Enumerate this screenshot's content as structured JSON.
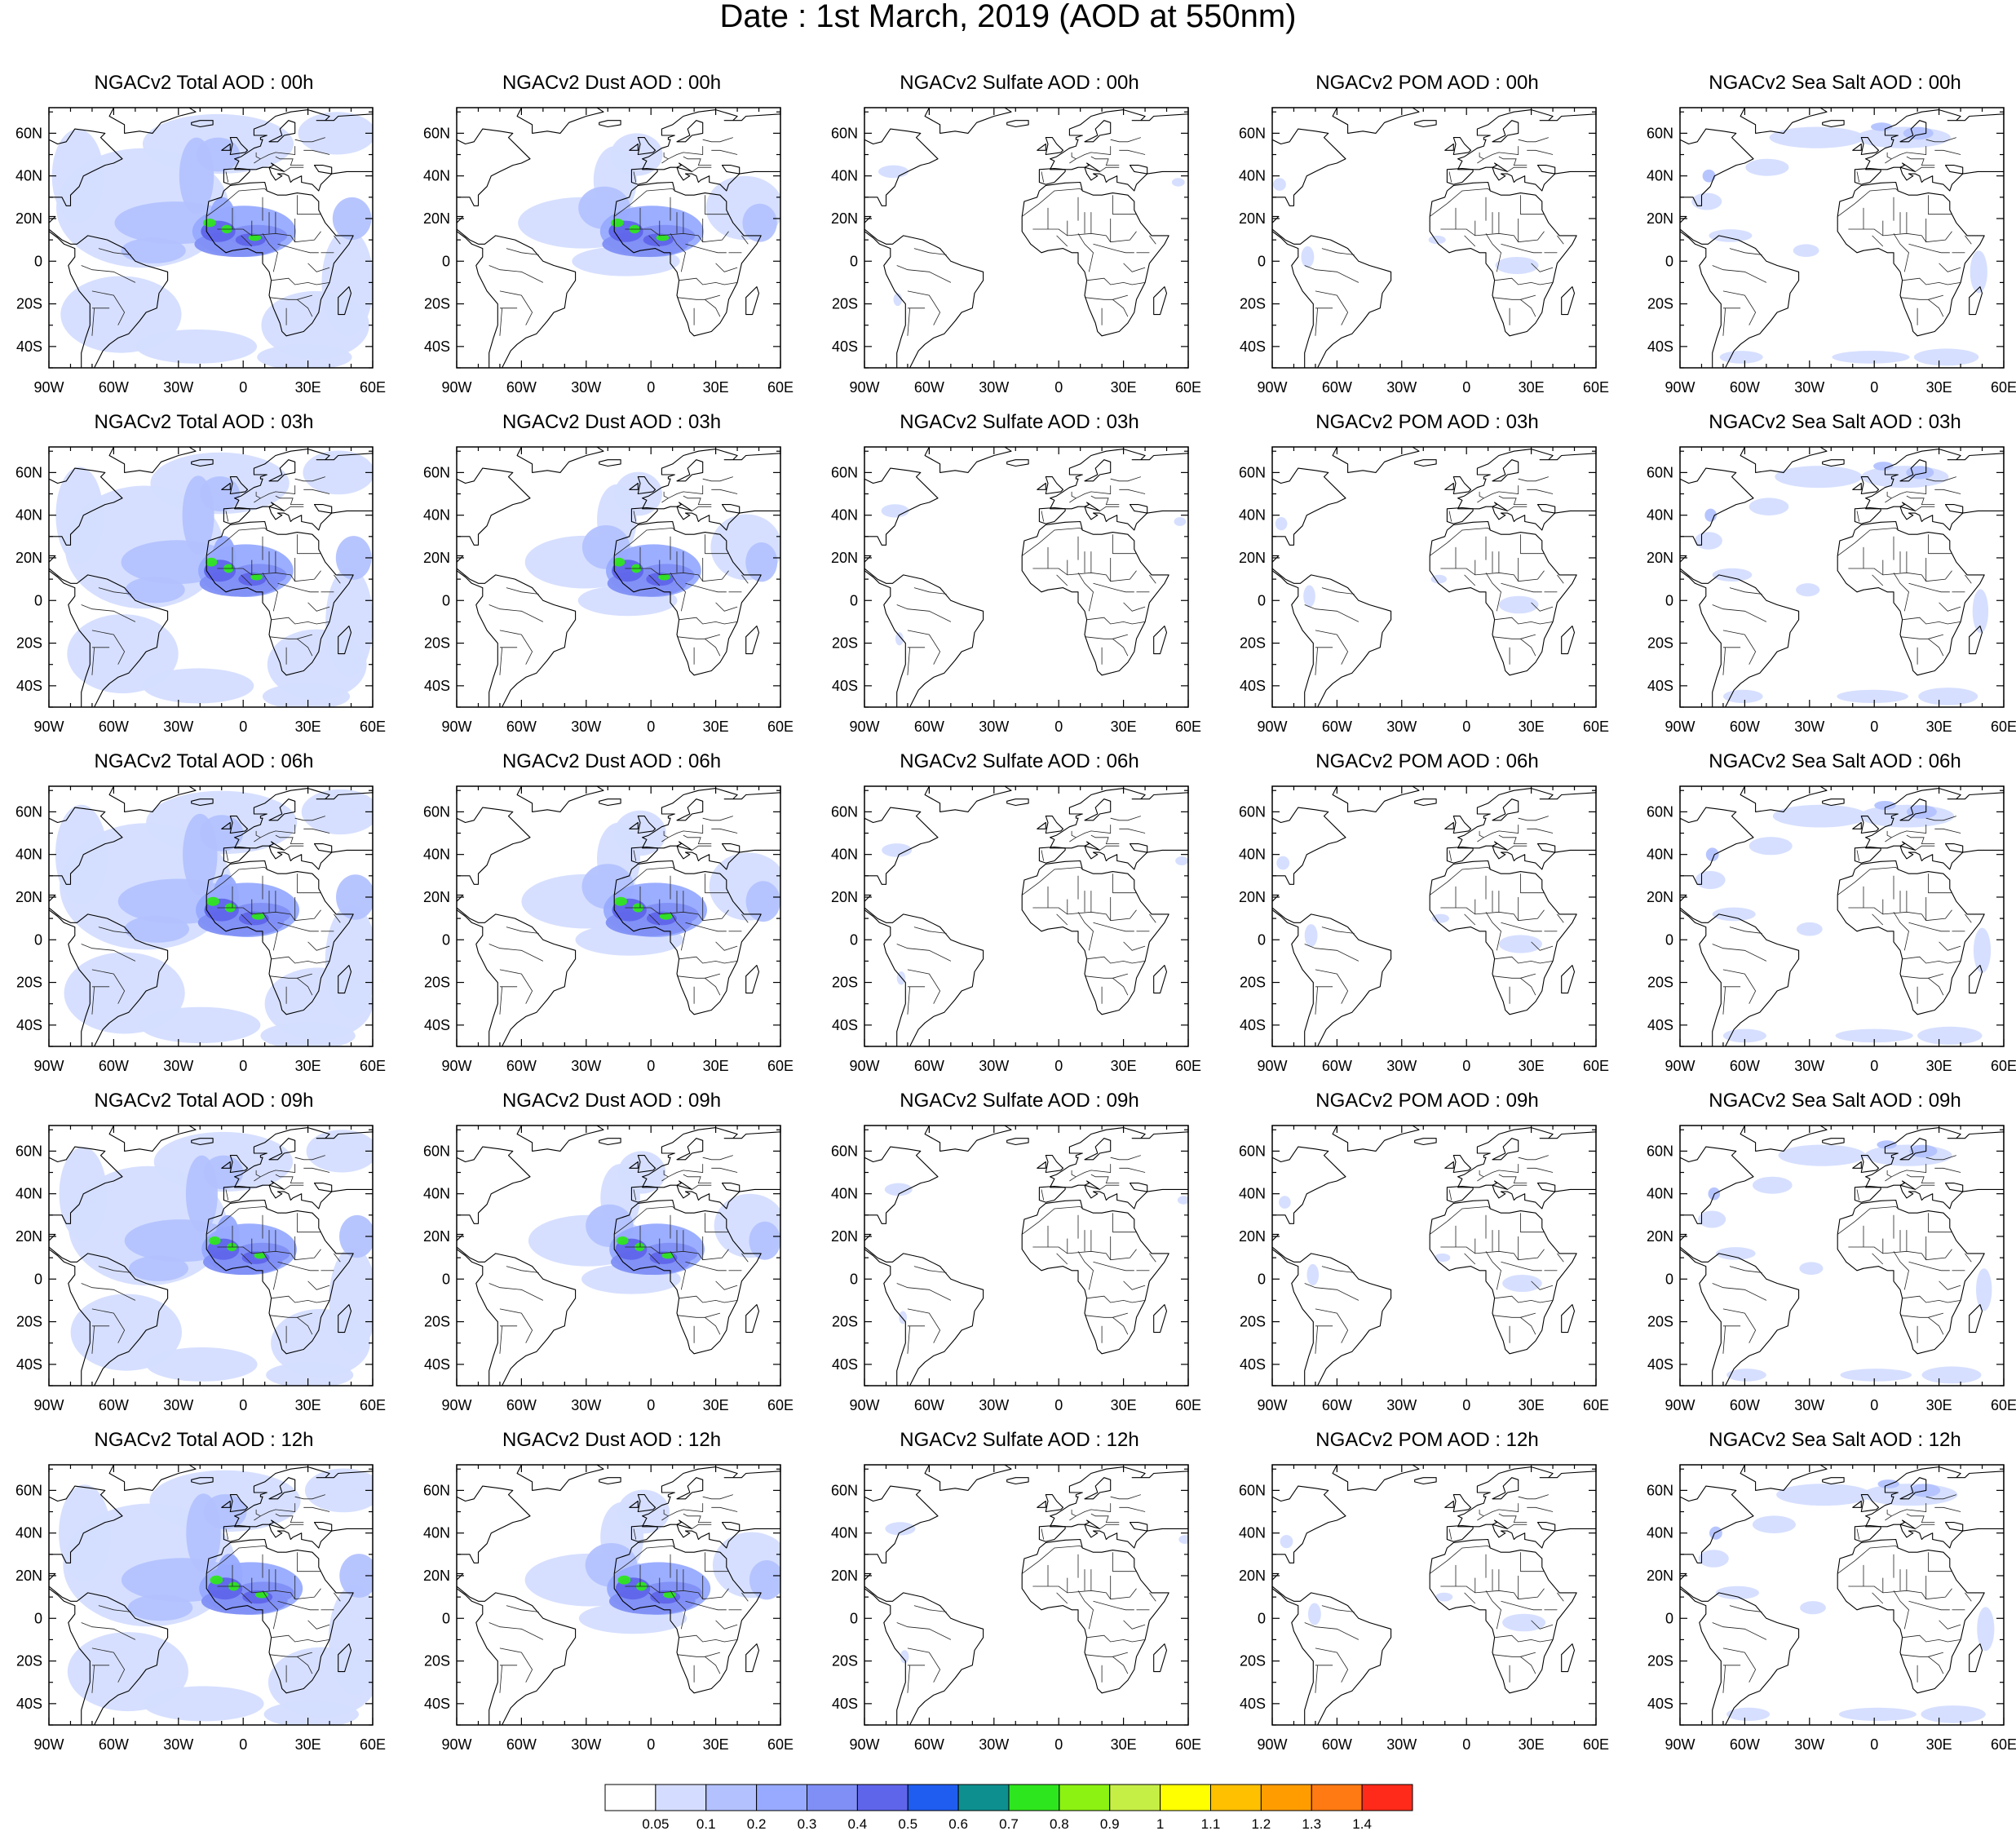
{
  "title": "Date : 1st March, 2019 (AOD at 550nm)",
  "rows": [
    "00h",
    "03h",
    "06h",
    "09h",
    "12h"
  ],
  "columns": [
    "Total",
    "Dust",
    "Sulfate",
    "POM",
    "Sea Salt"
  ],
  "panel_titles": [
    [
      "NGACv2 Total AOD : 00h",
      "NGACv2 Dust AOD : 00h",
      "NGACv2 Sulfate AOD : 00h",
      "NGACv2 POM AOD : 00h",
      "NGACv2 Sea Salt AOD : 00h"
    ],
    [
      "NGACv2 Total AOD : 03h",
      "NGACv2 Dust AOD : 03h",
      "NGACv2 Sulfate AOD : 03h",
      "NGACv2 POM AOD : 03h",
      "NGACv2 Sea Salt AOD : 03h"
    ],
    [
      "NGACv2 Total AOD : 06h",
      "NGACv2 Dust AOD : 06h",
      "NGACv2 Sulfate AOD : 06h",
      "NGACv2 POM AOD : 06h",
      "NGACv2 Sea Salt AOD : 06h"
    ],
    [
      "NGACv2 Total AOD : 09h",
      "NGACv2 Dust AOD : 09h",
      "NGACv2 Sulfate AOD : 09h",
      "NGACv2 POM AOD : 09h",
      "NGACv2 Sea Salt  AOD : 09h"
    ],
    [
      "NGACv2 Total AOD  : 12h",
      "NGACv2 Dust AOD : 12h",
      "NGACv2 Sulfate AOD : 12h",
      "NGACv2 POM  AOD : 12h",
      "NGACv2 Sea Salt  AOD : 12h"
    ]
  ],
  "map": {
    "lon_range": [
      -90,
      60
    ],
    "lat_range": [
      -50,
      72
    ],
    "lon_ticks": [
      -90,
      -60,
      -30,
      0,
      30,
      60
    ],
    "lon_tick_labels": [
      "90W",
      "60W",
      "30W",
      "0",
      "30E",
      "60E"
    ],
    "lat_ticks": [
      -40,
      -20,
      0,
      20,
      40,
      60
    ],
    "lat_tick_labels": [
      "40S",
      "20S",
      "0",
      "20N",
      "40N",
      "60N"
    ]
  },
  "colorbar": {
    "labels": [
      "0.05",
      "0.1",
      "0.2",
      "0.3",
      "0.4",
      "0.5",
      "0.6",
      "0.7",
      "0.8",
      "0.9",
      "1",
      "1.1",
      "1.2",
      "1.3",
      "1.4"
    ],
    "colors": [
      "#ffffff",
      "#d4ddff",
      "#b3c2ff",
      "#97aaff",
      "#7f8ff5",
      "#5f65ea",
      "#1f5df0",
      "#0e8f8f",
      "#2ee61d",
      "#8cf212",
      "#c6ef46",
      "#ffff00",
      "#ffc000",
      "#ff9d00",
      "#ff7a12",
      "#ff2a1a"
    ]
  },
  "chart_data": {
    "type": "heatmap",
    "title": "Date : 1st March, 2019 (AOD at 550nm)",
    "variable": "AOD at 550nm",
    "species": [
      "Total",
      "Dust",
      "Sulfate",
      "POM",
      "Sea Salt"
    ],
    "times": [
      "00h",
      "03h",
      "06h",
      "09h",
      "12h"
    ],
    "lon_range": [
      -90,
      60
    ],
    "lat_range": [
      -50,
      72
    ],
    "color_levels": [
      0.05,
      0.1,
      0.2,
      0.3,
      0.4,
      0.5,
      0.6,
      0.7,
      0.8,
      0.9,
      1,
      1.1,
      1.2,
      1.3,
      1.4
    ]
  }
}
